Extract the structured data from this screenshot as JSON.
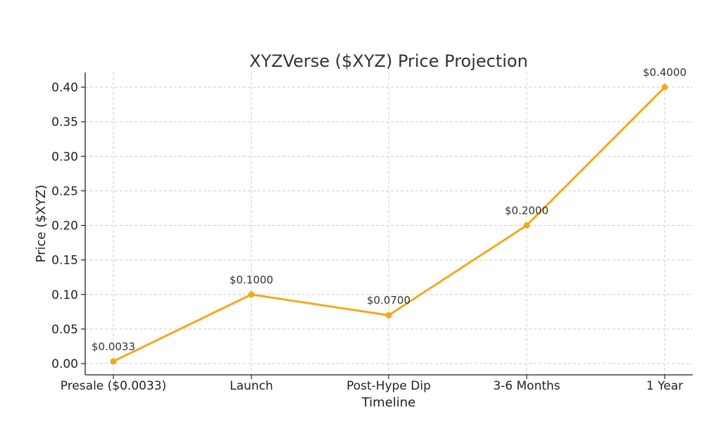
{
  "chart_data": {
    "type": "line",
    "title": "XYZVerse ($XYZ) Price Projection",
    "xlabel": "Timeline",
    "ylabel": "Price ($XYZ)",
    "categories": [
      "Presale ($0.0033)",
      "Launch",
      "Post-Hype Dip",
      "3-6 Months",
      "1 Year"
    ],
    "series": [
      {
        "values": [
          0.0033,
          0.1,
          0.07,
          0.2,
          0.4
        ],
        "labels": [
          "$0.0033",
          "$0.1000",
          "$0.0700",
          "$0.2000",
          "$0.4000"
        ],
        "color": "#f5a81c"
      }
    ],
    "ylim": [
      -0.015,
      0.42
    ],
    "yticks": [
      "0.00",
      "0.05",
      "0.10",
      "0.15",
      "0.20",
      "0.25",
      "0.30",
      "0.35",
      "0.40"
    ],
    "ytick_values": [
      0,
      0.05,
      0.1,
      0.15,
      0.2,
      0.25,
      0.3,
      0.35,
      0.4
    ],
    "grid": true
  }
}
